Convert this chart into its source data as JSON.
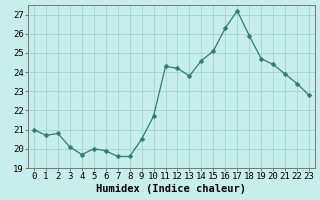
{
  "x": [
    0,
    1,
    2,
    3,
    4,
    5,
    6,
    7,
    8,
    9,
    10,
    11,
    12,
    13,
    14,
    15,
    16,
    17,
    18,
    19,
    20,
    21,
    22,
    23
  ],
  "y": [
    21.0,
    20.7,
    20.8,
    20.1,
    19.7,
    20.0,
    19.9,
    19.6,
    19.6,
    20.5,
    21.7,
    24.3,
    24.2,
    23.8,
    24.6,
    25.1,
    26.3,
    27.2,
    25.9,
    24.7,
    24.4,
    23.9,
    23.4,
    22.8
  ],
  "line_color": "#2e7d6e",
  "marker": "D",
  "marker_size": 2.5,
  "bg_color": "#c8eeeb",
  "grid_color": "#a8d8d2",
  "xlabel": "Humidex (Indice chaleur)",
  "ylabel": "",
  "xlim": [
    -0.5,
    23.5
  ],
  "ylim": [
    19,
    27.5
  ],
  "yticks": [
    19,
    20,
    21,
    22,
    23,
    24,
    25,
    26,
    27
  ],
  "xticks": [
    0,
    1,
    2,
    3,
    4,
    5,
    6,
    7,
    8,
    9,
    10,
    11,
    12,
    13,
    14,
    15,
    16,
    17,
    18,
    19,
    20,
    21,
    22,
    23
  ],
  "tick_fontsize": 6.5,
  "xlabel_fontsize": 7.5
}
